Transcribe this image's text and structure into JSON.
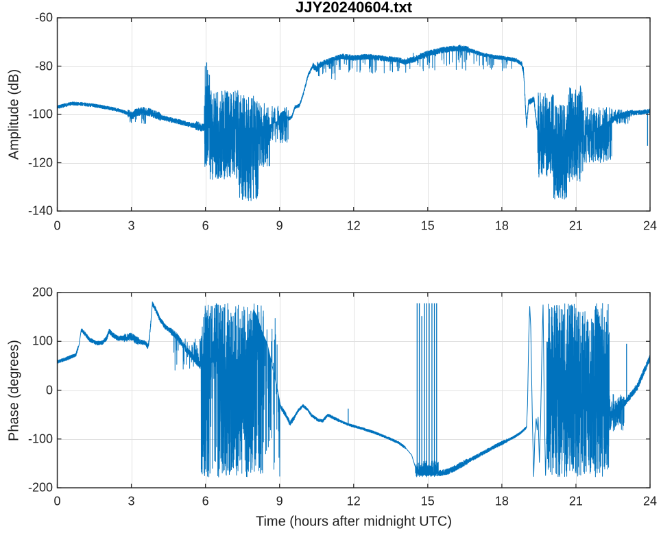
{
  "figure": {
    "title": "JJY20240604.txt"
  },
  "colors": {
    "line": "#0072BD",
    "grid": "#e0e0e0",
    "axis": "#262626",
    "text": "#1f1f1f",
    "background": "#ffffff"
  },
  "chart_data": [
    {
      "type": "line",
      "title": "JJY20240604.txt",
      "xlabel": "",
      "ylabel": "Amplitude (dB)",
      "xlim": [
        0,
        24
      ],
      "ylim": [
        -140,
        -60
      ],
      "xticks": [
        0,
        3,
        6,
        9,
        12,
        15,
        18,
        21,
        24
      ],
      "yticks": [
        -60,
        -80,
        -100,
        -120,
        -140
      ],
      "grid": true,
      "legend": null,
      "series": [
        {
          "name": "amplitude",
          "units": "dB",
          "keypoints": [
            [
              0,
              -97
            ],
            [
              0.6,
              -95.5
            ],
            [
              1.0,
              -95.7
            ],
            [
              1.5,
              -96.3
            ],
            [
              2.0,
              -97.2
            ],
            [
              2.5,
              -98.3
            ],
            [
              2.85,
              -99.5
            ],
            [
              3.05,
              -100.5
            ],
            [
              3.2,
              -99
            ],
            [
              3.5,
              -98.6
            ],
            [
              3.8,
              -99.3
            ],
            [
              4.3,
              -101.5
            ],
            [
              4.9,
              -103
            ],
            [
              5.4,
              -104.3
            ],
            [
              5.9,
              -105.3
            ],
            [
              6.4,
              -105.8
            ],
            [
              7.2,
              -106
            ],
            [
              8.0,
              -105.5
            ],
            [
              8.5,
              -104.8
            ],
            [
              8.9,
              -103
            ],
            [
              9.05,
              -99.5
            ],
            [
              9.2,
              -98.5
            ],
            [
              9.35,
              -102
            ],
            [
              9.5,
              -101
            ],
            [
              9.62,
              -97
            ],
            [
              9.8,
              -96.3
            ],
            [
              9.95,
              -92
            ],
            [
              10.15,
              -84
            ],
            [
              10.35,
              -79.8
            ],
            [
              10.5,
              -81.3
            ],
            [
              10.68,
              -79.2
            ],
            [
              11.0,
              -78
            ],
            [
              11.5,
              -75.9
            ],
            [
              12.0,
              -76.6
            ],
            [
              12.6,
              -76.1
            ],
            [
              13.2,
              -76.8
            ],
            [
              13.8,
              -77.4
            ],
            [
              14.1,
              -78.2
            ],
            [
              14.5,
              -77
            ],
            [
              15.0,
              -74.8
            ],
            [
              15.5,
              -73.6
            ],
            [
              16.0,
              -72.8
            ],
            [
              16.35,
              -72.4
            ],
            [
              16.7,
              -73.4
            ],
            [
              17.2,
              -75.2
            ],
            [
              17.7,
              -76.2
            ],
            [
              18.2,
              -76.8
            ],
            [
              18.6,
              -77.6
            ],
            [
              18.8,
              -79
            ],
            [
              18.88,
              -82
            ],
            [
              19.0,
              -105
            ],
            [
              19.08,
              -95
            ],
            [
              19.3,
              -93.8
            ],
            [
              19.42,
              -105
            ],
            [
              19.6,
              -108
            ],
            [
              20.0,
              -110
            ],
            [
              20.5,
              -112
            ],
            [
              21.0,
              -110.5
            ],
            [
              21.5,
              -108
            ],
            [
              22.0,
              -105
            ],
            [
              22.4,
              -102.5
            ],
            [
              22.8,
              -100.5
            ],
            [
              23.2,
              -99.6
            ],
            [
              23.6,
              -99.2
            ],
            [
              24,
              -98.6
            ]
          ],
          "noise_bands": [
            [
              0,
              2.85,
              0.7
            ],
            [
              2.85,
              4.2,
              1.6
            ],
            [
              4.2,
              5.6,
              1.0
            ],
            [
              5.6,
              5.95,
              1.8
            ],
            [
              9.35,
              10.35,
              0.7
            ],
            [
              10.35,
              11.2,
              1.2
            ],
            [
              11.2,
              14.2,
              1.1
            ],
            [
              14.2,
              16.7,
              1.2
            ],
            [
              16.7,
              18.8,
              0.8
            ],
            [
              18.8,
              19.45,
              1.2
            ],
            [
              22.4,
              23.3,
              1.3
            ],
            [
              23.3,
              24,
              0.9
            ]
          ],
          "bursts": [
            [
              2.9,
              3.6,
              -104,
              -98,
              0.12
            ],
            [
              5.95,
              6.18,
              -122,
              -79,
              0.55
            ],
            [
              6.18,
              7.35,
              -127,
              -90,
              0.8
            ],
            [
              7.35,
              8.15,
              -136,
              -92,
              0.8
            ],
            [
              8.15,
              8.6,
              -122,
              -95,
              0.6
            ],
            [
              8.6,
              9.35,
              -112,
              -96,
              0.3
            ],
            [
              10.5,
              11.3,
              -86,
              -78,
              0.08
            ],
            [
              11.3,
              14.2,
              -83,
              -76.5,
              0.05
            ],
            [
              14.2,
              16.7,
              -82,
              -73,
              0.05
            ],
            [
              16.7,
              18.8,
              -82,
              -76,
              0.04
            ],
            [
              19.45,
              20.1,
              -126,
              -91,
              0.75
            ],
            [
              20.1,
              20.65,
              -136,
              -96,
              0.78
            ],
            [
              20.65,
              21.3,
              -128,
              -88,
              0.78
            ],
            [
              21.3,
              22.45,
              -120,
              -97,
              0.6
            ],
            [
              22.45,
              23.2,
              -104,
              -98,
              0.25
            ]
          ],
          "spikes": [
            [
              6.05,
              -78.5
            ],
            [
              23.9,
              -113
            ]
          ]
        }
      ]
    },
    {
      "type": "line",
      "title": "",
      "xlabel": "Time (hours after midnight UTC)",
      "ylabel": "Phase (degrees)",
      "xlim": [
        0,
        24
      ],
      "ylim": [
        -200,
        200
      ],
      "xticks": [
        0,
        3,
        6,
        9,
        12,
        15,
        18,
        21,
        24
      ],
      "yticks": [
        200,
        100,
        0,
        -100,
        -200
      ],
      "grid": true,
      "legend": null,
      "series": [
        {
          "name": "phase",
          "units": "degrees",
          "keypoints": [
            [
              0,
              58
            ],
            [
              0.35,
              64
            ],
            [
              0.55,
              68
            ],
            [
              0.75,
              72
            ],
            [
              0.88,
              92
            ],
            [
              0.97,
              124
            ],
            [
              1.1,
              117
            ],
            [
              1.3,
              104
            ],
            [
              1.6,
              96
            ],
            [
              1.85,
              98
            ],
            [
              2.0,
              106
            ],
            [
              2.1,
              121
            ],
            [
              2.25,
              113
            ],
            [
              2.45,
              106
            ],
            [
              2.7,
              107
            ],
            [
              3.0,
              110
            ],
            [
              3.2,
              102
            ],
            [
              3.45,
              98
            ],
            [
              3.58,
              96
            ],
            [
              3.68,
              88
            ],
            [
              3.74,
              110
            ],
            [
              3.85,
              177
            ],
            [
              4.0,
              163
            ],
            [
              4.15,
              146
            ],
            [
              4.35,
              131
            ],
            [
              4.6,
              121
            ],
            [
              4.85,
              110
            ],
            [
              5.1,
              92
            ],
            [
              5.35,
              76
            ],
            [
              5.6,
              62
            ],
            [
              5.8,
              50
            ],
            [
              6.5,
              60
            ],
            [
              7.5,
              40
            ],
            [
              7.95,
              165
            ],
            [
              8.1,
              150
            ],
            [
              8.3,
              118
            ],
            [
              8.5,
              95
            ],
            [
              8.7,
              50
            ],
            [
              8.9,
              5
            ],
            [
              9.05,
              -35
            ],
            [
              9.25,
              -50
            ],
            [
              9.42,
              -68
            ],
            [
              9.55,
              -60
            ],
            [
              9.75,
              -42
            ],
            [
              9.95,
              -32
            ],
            [
              10.1,
              -38
            ],
            [
              10.3,
              -52
            ],
            [
              10.55,
              -61
            ],
            [
              10.75,
              -63
            ],
            [
              10.95,
              -51
            ],
            [
              11.15,
              -56
            ],
            [
              11.4,
              -62
            ],
            [
              11.8,
              -71
            ],
            [
              12.3,
              -78
            ],
            [
              12.8,
              -86
            ],
            [
              13.3,
              -96
            ],
            [
              13.8,
              -107
            ],
            [
              14.1,
              -118
            ],
            [
              14.35,
              -133
            ],
            [
              14.5,
              -158
            ],
            [
              14.6,
              -170
            ],
            [
              15.0,
              -172
            ],
            [
              15.4,
              -171
            ],
            [
              15.8,
              -167
            ],
            [
              16.1,
              -160
            ],
            [
              16.5,
              -149
            ],
            [
              16.9,
              -138
            ],
            [
              17.3,
              -127
            ],
            [
              17.7,
              -116
            ],
            [
              18.1,
              -106
            ],
            [
              18.5,
              -96
            ],
            [
              18.8,
              -86
            ],
            [
              19.0,
              -76
            ],
            [
              19.04,
              -30
            ],
            [
              19.09,
              110
            ],
            [
              19.13,
              172
            ],
            [
              19.17,
              130
            ],
            [
              19.24,
              -70
            ],
            [
              19.29,
              -178
            ],
            [
              19.34,
              -90
            ],
            [
              19.39,
              -58
            ],
            [
              19.43,
              -82
            ],
            [
              19.47,
              -55
            ],
            [
              19.52,
              -148
            ],
            [
              19.57,
              -60
            ],
            [
              19.63,
              100
            ],
            [
              19.67,
              176
            ],
            [
              19.72,
              -40
            ],
            [
              19.77,
              -176
            ],
            [
              19.85,
              -30
            ],
            [
              22.35,
              -45
            ],
            [
              22.6,
              -42
            ],
            [
              22.95,
              -28
            ],
            [
              23.2,
              -12
            ],
            [
              23.5,
              8
            ],
            [
              23.75,
              38
            ],
            [
              23.9,
              55
            ],
            [
              24,
              66
            ]
          ],
          "noise_bands": [
            [
              0,
              0.85,
              3.5
            ],
            [
              0.97,
              1.9,
              4
            ],
            [
              1.9,
              2.7,
              5
            ],
            [
              2.7,
              3.3,
              8
            ],
            [
              3.3,
              3.8,
              5
            ],
            [
              3.85,
              4.6,
              5
            ],
            [
              4.6,
              5.8,
              7
            ],
            [
              9.05,
              9.6,
              5
            ],
            [
              9.6,
              11.4,
              3
            ],
            [
              11.4,
              14.1,
              2.5
            ],
            [
              14.5,
              15.45,
              4
            ],
            [
              15.45,
              16.6,
              6
            ],
            [
              16.6,
              18.2,
              4
            ],
            [
              18.2,
              19.0,
              2.5
            ],
            [
              22.35,
              22.95,
              14
            ],
            [
              22.95,
              24,
              7
            ]
          ],
          "bursts": [
            [
              4.7,
              5.8,
              40,
              105,
              0.12
            ],
            [
              5.82,
              6.15,
              -178,
              178,
              0.85
            ],
            [
              6.15,
              6.5,
              -178,
              0,
              0.12
            ],
            [
              6.15,
              6.5,
              10,
              178,
              0.55
            ],
            [
              6.5,
              7.92,
              -178,
              178,
              0.85
            ],
            [
              7.92,
              8.35,
              -178,
              178,
              0.45
            ],
            [
              8.35,
              9.05,
              -178,
              150,
              0.12
            ],
            [
              14.5,
              15.45,
              -178,
              -145,
              0.45
            ],
            [
              19.82,
              22.35,
              -178,
              178,
              0.88
            ],
            [
              22.35,
              22.95,
              -85,
              -5,
              0.45
            ]
          ],
          "spikes": [
            [
              11.78,
              -38
            ],
            [
              14.57,
              178
            ],
            [
              14.66,
              178
            ],
            [
              14.76,
              152
            ],
            [
              14.87,
              178
            ],
            [
              14.96,
              178
            ],
            [
              15.06,
              178
            ],
            [
              15.17,
              178
            ],
            [
              15.27,
              178
            ],
            [
              15.36,
              178
            ],
            [
              23.05,
              95
            ]
          ]
        }
      ]
    }
  ]
}
